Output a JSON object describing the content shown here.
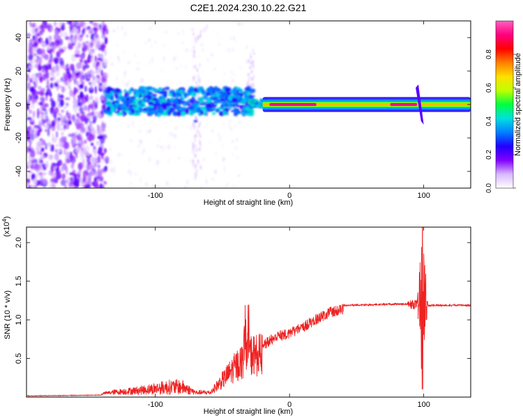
{
  "title": "C2E1.2024.230.10.22.G21",
  "chart_data": [
    {
      "type": "heatmap",
      "title": "C2E1.2024.230.10.22.G21",
      "xlabel": "Height of straight line (km)",
      "ylabel": "Frequency (Hz)",
      "xlim": [
        -196,
        135
      ],
      "ylim": [
        -50,
        50
      ],
      "x_ticks": [
        -100,
        0,
        100
      ],
      "x_tick_labels": [
        "-100",
        "0",
        "100"
      ],
      "y_ticks": [
        -40,
        -20,
        0,
        20,
        40
      ],
      "y_tick_labels": [
        "-40",
        "-20",
        "0",
        "20",
        "40"
      ],
      "colorbar": {
        "label": "Normalized spectral amplitude",
        "range": [
          0,
          1
        ],
        "ticks": [
          0.0,
          0.2,
          0.4,
          0.6,
          0.8
        ],
        "tick_labels": [
          "0.0",
          "0.2",
          "0.4",
          "0.6",
          "0.8"
        ],
        "colors": [
          "#ffffff",
          "#d9b8ff",
          "#8000ff",
          "#2000ff",
          "#0080ff",
          "#00e0e0",
          "#00ff40",
          "#c0ff00",
          "#ffe000",
          "#ff8000",
          "#ff0000",
          "#ff0080",
          "#ff60c0"
        ]
      },
      "regions": [
        {
          "x": [
            -196,
            -137
          ],
          "freq": [
            -50,
            50
          ],
          "level": 0.2,
          "desc_color": "#7a1aff"
        },
        {
          "x": [
            -135,
            -30
          ],
          "freq": [
            -6,
            10
          ],
          "level": 0.3,
          "desc_color": "#2a4aff"
        },
        {
          "x": [
            -20,
            135
          ],
          "freq": [
            -2,
            2
          ],
          "level": 0.6,
          "desc_color": "#00ff60"
        },
        {
          "x": [
            -15,
            20
          ],
          "freq": [
            -1,
            1
          ],
          "level": 0.9,
          "desc_color": "#ff2020"
        },
        {
          "x": [
            75,
            95
          ],
          "freq": [
            -1,
            1
          ],
          "level": 0.9,
          "desc_color": "#ff2020"
        }
      ],
      "grid": false
    },
    {
      "type": "line",
      "xlabel": "Height of straight line (km)",
      "ylabel": "SNR (10 * v/v)",
      "y_multiplier": "(x10^4)",
      "xlim": [
        -196,
        135
      ],
      "ylim": [
        0,
        2.2
      ],
      "x_ticks": [
        -100,
        0,
        100
      ],
      "x_tick_labels": [
        "-100",
        "0",
        "100"
      ],
      "y_ticks": [
        0.5,
        1.0,
        1.5,
        2.0
      ],
      "y_tick_labels": [
        "0.5",
        "1.0",
        "1.5",
        "2.0"
      ],
      "color": "#ee2222",
      "envelope_points": [
        {
          "x": -196,
          "y": 0.02
        },
        {
          "x": -140,
          "y": 0.03
        },
        {
          "x": -130,
          "y": 0.07
        },
        {
          "x": -110,
          "y": 0.12
        },
        {
          "x": -90,
          "y": 0.2
        },
        {
          "x": -80,
          "y": 0.2
        },
        {
          "x": -70,
          "y": 0.06
        },
        {
          "x": -60,
          "y": 0.06
        },
        {
          "x": -50,
          "y": 0.3
        },
        {
          "x": -40,
          "y": 0.55
        },
        {
          "x": -30,
          "y": 0.75
        },
        {
          "x": -20,
          "y": 0.75
        },
        {
          "x": -10,
          "y": 0.85
        },
        {
          "x": 0,
          "y": 0.9
        },
        {
          "x": 10,
          "y": 0.98
        },
        {
          "x": 20,
          "y": 1.08
        },
        {
          "x": 30,
          "y": 1.17
        },
        {
          "x": 40,
          "y": 1.2
        },
        {
          "x": 90,
          "y": 1.22
        },
        {
          "x": 100,
          "y": 1.2
        },
        {
          "x": 135,
          "y": 1.2
        }
      ],
      "peak_events": [
        {
          "x": -30,
          "y_max": 1.2
        },
        {
          "x": 100,
          "y_max": 2.2,
          "y_min": 0.1
        }
      ],
      "grid": false
    }
  ]
}
